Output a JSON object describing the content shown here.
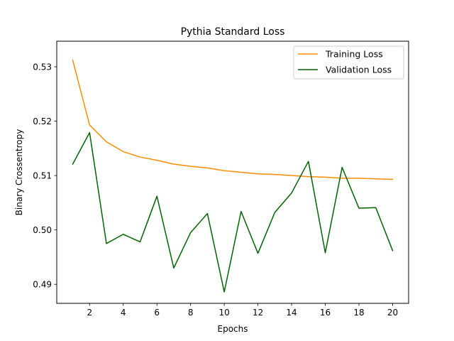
{
  "chart_data": {
    "type": "line",
    "title": "Pythia Standard Loss",
    "xlabel": "Epochs",
    "ylabel": "Binary Crossentropy",
    "xlim": [
      0.05,
      20.95
    ],
    "ylim": [
      0.4865,
      0.5347
    ],
    "xticks": [
      2,
      4,
      6,
      8,
      10,
      12,
      14,
      16,
      18,
      20
    ],
    "yticks": [
      0.49,
      0.5,
      0.51,
      0.52,
      0.53
    ],
    "ytick_labels": [
      "0.49",
      "0.50",
      "0.51",
      "0.52",
      "0.53"
    ],
    "grid": false,
    "legend_position": "top-right",
    "x": [
      1,
      2,
      3,
      4,
      5,
      6,
      7,
      8,
      9,
      10,
      11,
      12,
      13,
      14,
      15,
      16,
      17,
      18,
      19,
      20
    ],
    "series": [
      {
        "name": "Training Loss",
        "color": "#ff8c00",
        "values": [
          0.5312,
          0.5193,
          0.5162,
          0.5144,
          0.5134,
          0.5128,
          0.5121,
          0.5117,
          0.5114,
          0.5109,
          0.5106,
          0.5103,
          0.5102,
          0.51,
          0.5098,
          0.5097,
          0.5095,
          0.5095,
          0.5094,
          0.5093
        ]
      },
      {
        "name": "Validation Loss",
        "color": "#006400",
        "values": [
          0.5121,
          0.5179,
          0.4975,
          0.4992,
          0.4978,
          0.5062,
          0.493,
          0.4995,
          0.503,
          0.4886,
          0.5034,
          0.4957,
          0.5032,
          0.5068,
          0.5126,
          0.4958,
          0.5115,
          0.504,
          0.5041,
          0.4962
        ]
      }
    ]
  }
}
